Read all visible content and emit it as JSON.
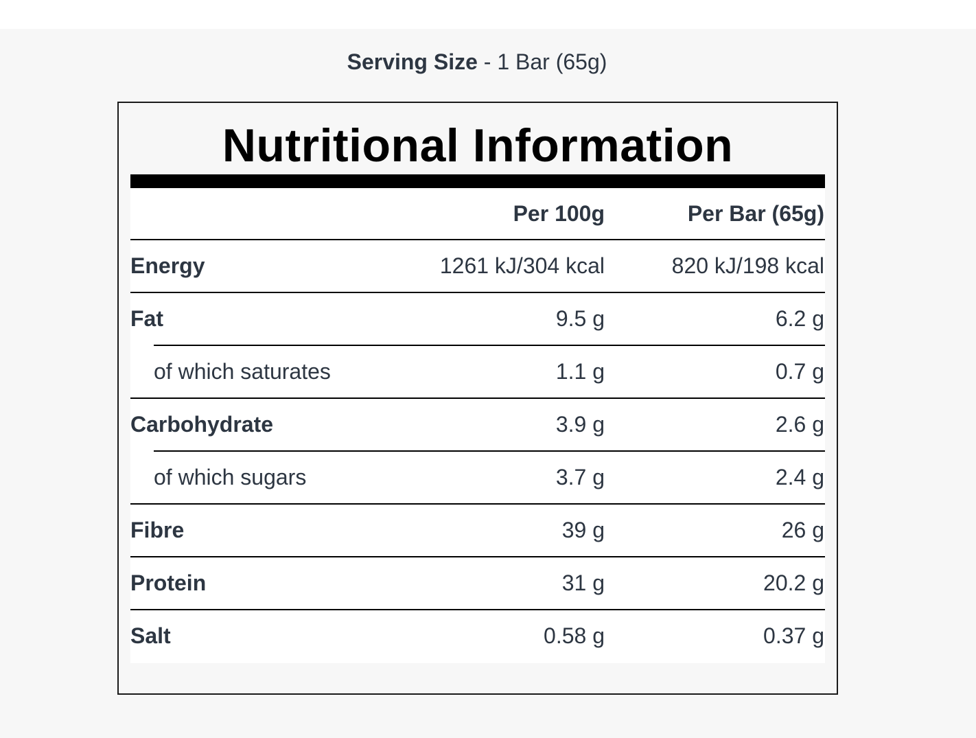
{
  "serving": {
    "label": "Serving Size",
    "separator": " - ",
    "value": "1 Bar (65g)"
  },
  "panel": {
    "title": "Nutritional Information",
    "columns": [
      "",
      "Per 100g",
      "Per Bar (65g)"
    ],
    "rows": [
      {
        "name": "Energy",
        "per100": "1261 kJ/304 kcal",
        "perBar": "820 kJ/198 kcal"
      },
      {
        "name": "Fat",
        "per100": "9.5 g",
        "perBar": "6.2 g"
      },
      {
        "name": "of which saturates",
        "per100": "1.1 g",
        "perBar": "0.7 g"
      },
      {
        "name": "Carbohydrate",
        "per100": "3.9 g",
        "perBar": "2.6 g"
      },
      {
        "name": "of which sugars",
        "per100": "3.7 g",
        "perBar": "2.4 g"
      },
      {
        "name": "Fibre",
        "per100": "39 g",
        "perBar": "26 g"
      },
      {
        "name": "Protein",
        "per100": "31 g",
        "perBar": "20.2 g"
      },
      {
        "name": "Salt",
        "per100": "0.58 g",
        "perBar": "0.37 g"
      }
    ]
  }
}
